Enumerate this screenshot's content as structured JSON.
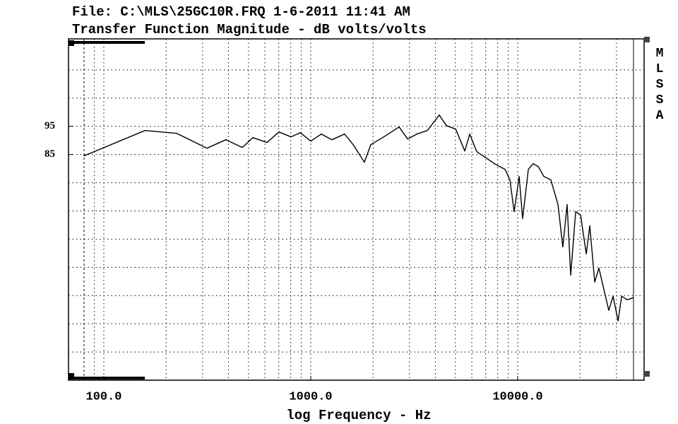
{
  "chart_data": {
    "type": "line",
    "title": "File: C:\\MLS\\25GC10R.FRQ 1-6-2011 11:41 AM",
    "subtitle": "Transfer Function Magnitude - dB volts/volts",
    "x_label": "log Frequency - Hz",
    "side_label": "MLSSA",
    "x_scale": "log",
    "color": "#000000",
    "grid": true,
    "xlim": [
      67.5,
      40800
    ],
    "ylim": [
      5,
      126
    ],
    "xticks": [
      {
        "value": 100,
        "label": "100.0"
      },
      {
        "value": 1000,
        "label": "1000.0"
      },
      {
        "value": 10000,
        "label": "10000.0"
      }
    ],
    "yticks": [
      95,
      85
    ],
    "x": [
      80,
      158,
      225,
      315,
      389,
      467,
      525,
      614,
      702,
      802,
      889,
      1000,
      1125,
      1265,
      1457,
      1603,
      1817,
      1950,
      2281,
      2672,
      2938,
      3253,
      3658,
      4178,
      4519,
      5012,
      5547,
      5861,
      6342,
      7131,
      7713,
      8683,
      9170,
      9610,
      10160,
      10560,
      11250,
      11880,
      12560,
      13370,
      14460,
      15660,
      16520,
      17330,
      18030,
      19050,
      20130,
      21430,
      22290,
      23560,
      24680,
      26060,
      27540,
      28890,
      30550,
      31770,
      33810,
      36310
    ],
    "values": [
      84.5,
      93.5,
      92.5,
      87.25,
      90.25,
      87.5,
      91,
      89.25,
      93,
      91.25,
      92.75,
      89.75,
      92.25,
      90.25,
      92.25,
      88.5,
      82.25,
      88.5,
      91.5,
      94.75,
      90.5,
      92.25,
      93.5,
      99,
      95.25,
      94,
      86.25,
      92.25,
      86,
      83.5,
      81.75,
      79.75,
      76,
      64.75,
      77.25,
      62.25,
      79.75,
      81.75,
      80.75,
      77.25,
      76,
      67.25,
      52.25,
      67.25,
      42.25,
      64.75,
      63.5,
      49.75,
      59.75,
      39.75,
      44.75,
      37.25,
      29.75,
      34.75,
      26,
      34.75,
      33.5,
      34.25
    ]
  }
}
